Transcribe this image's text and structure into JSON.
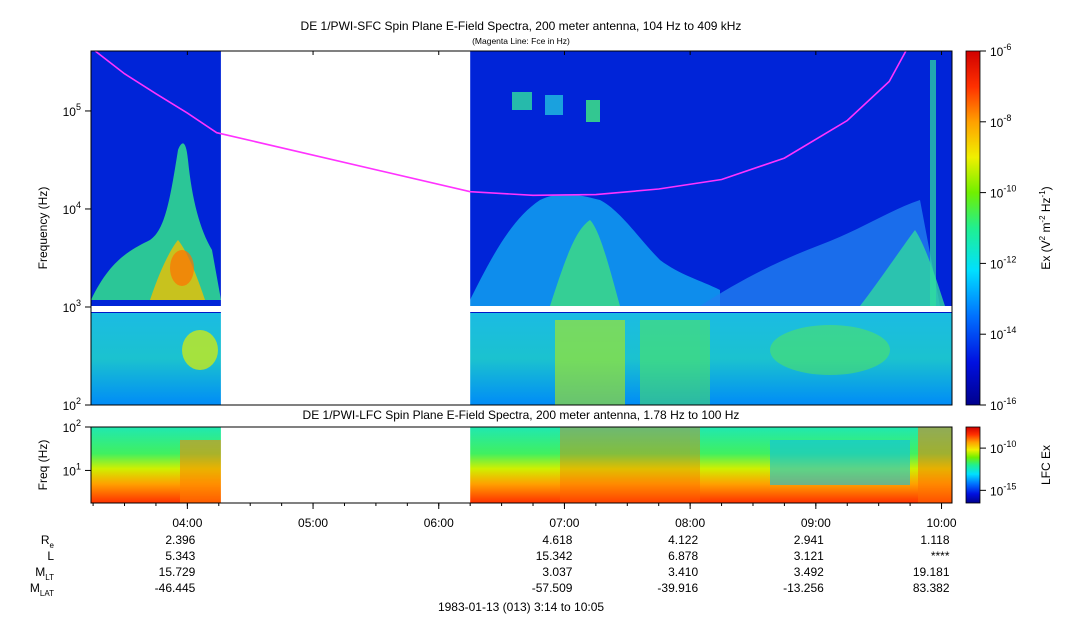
{
  "top_title": "DE 1/PWI-SFC  Spin Plane E-Field Spectra, 200 meter antenna, 104 Hz to 409 kHz",
  "top_subtitle": "(Magenta Line: Fce in Hz)",
  "bottom_title": "DE 1/PWI-LFC  Spin Plane E-Field Spectra, 200 meter antenna, 1.78 Hz to 100 Hz",
  "footer": "1983-01-13 (013) 3:14 to 10:05",
  "colors": {
    "fce_line": "#ff33ff",
    "background_fill": "#0019c8",
    "data_gap": "#ffffff"
  },
  "chart_data": [
    {
      "type": "heatmap",
      "name": "SFC",
      "title": "DE 1/PWI-SFC  Spin Plane E-Field Spectra, 200 meter antenna, 104 Hz to 409 kHz",
      "subtitle": "(Magenta Line: Fce in Hz)",
      "ylabel": "Frequency (Hz)",
      "yscale": "log",
      "ylim": [
        100,
        409000
      ],
      "yticks": [
        {
          "value": 100,
          "base": "10",
          "exp": "2"
        },
        {
          "value": 1000,
          "base": "10",
          "exp": "3"
        },
        {
          "value": 10000,
          "base": "10",
          "exp": "4"
        },
        {
          "value": 100000,
          "base": "10",
          "exp": "5"
        }
      ],
      "colorbar_label": {
        "prefix": "Ex (V",
        "sup1": "2",
        "mid": " m",
        "sup2": "-2",
        "mid2": " Hz",
        "sup3": "-1",
        "suffix": ")"
      },
      "colorbar_scale": "log",
      "colorbar_ticks": [
        {
          "value": 1e-06,
          "base": "10",
          "exp": "-6"
        },
        {
          "value": 1e-08,
          "base": "10",
          "exp": "-8"
        },
        {
          "value": 1e-10,
          "base": "10",
          "exp": "-10"
        },
        {
          "value": 1e-12,
          "base": "10",
          "exp": "-12"
        },
        {
          "value": 1e-14,
          "base": "10",
          "exp": "-14"
        },
        {
          "value": 1e-16,
          "base": "10",
          "exp": "-16"
        }
      ],
      "data_gap_utc": [
        "04:16",
        "06:15"
      ],
      "fce_line": [
        {
          "t": "03:16",
          "f": 409000
        },
        {
          "t": "03:30",
          "f": 240000
        },
        {
          "t": "03:45",
          "f": 150000
        },
        {
          "t": "04:00",
          "f": 95000
        },
        {
          "t": "04:14",
          "f": 60000
        },
        {
          "t": "06:15",
          "f": 15000
        },
        {
          "t": "06:45",
          "f": 13800
        },
        {
          "t": "07:15",
          "f": 14000
        },
        {
          "t": "07:45",
          "f": 16000
        },
        {
          "t": "08:15",
          "f": 20000
        },
        {
          "t": "08:45",
          "f": 33000
        },
        {
          "t": "09:15",
          "f": 80000
        },
        {
          "t": "09:35",
          "f": 200000
        },
        {
          "t": "09:43",
          "f": 409000
        }
      ]
    },
    {
      "type": "heatmap",
      "name": "LFC",
      "title": "DE 1/PWI-LFC  Spin Plane E-Field Spectra, 200 meter antenna, 1.78 Hz to 100 Hz",
      "ylabel": "Freq (Hz)",
      "yscale": "log",
      "ylim": [
        1.78,
        100
      ],
      "yticks": [
        {
          "value": 10,
          "base": "10",
          "exp": "1"
        },
        {
          "value": 100,
          "base": "10",
          "exp": "2"
        }
      ],
      "colorbar_label": "LFC Ex",
      "colorbar_ticks": [
        {
          "value": 1e-10,
          "base": "10",
          "exp": "-10"
        },
        {
          "value": 1e-15,
          "base": "10",
          "exp": "-15"
        }
      ],
      "data_gap_utc": [
        "04:16",
        "06:15"
      ]
    }
  ],
  "time_axis": {
    "start": "03:14",
    "end": "10:05",
    "ticks": [
      "04:00",
      "05:00",
      "06:00",
      "07:00",
      "08:00",
      "09:00",
      "10:00"
    ]
  },
  "ephemeris": {
    "row_labels": [
      {
        "main": "R",
        "sub": "e"
      },
      {
        "main": "L",
        "sub": ""
      },
      {
        "main": "M",
        "sub": "LT"
      },
      {
        "main": "M",
        "sub": "LAT"
      }
    ],
    "columns": [
      {
        "time": "04:00",
        "values": [
          "2.396",
          "5.343",
          "15.729",
          "-46.445"
        ]
      },
      {
        "time": "07:00",
        "values": [
          "4.618",
          "15.342",
          "3.037",
          "-57.509"
        ]
      },
      {
        "time": "08:00",
        "values": [
          "4.122",
          "6.878",
          "3.410",
          "-39.916"
        ]
      },
      {
        "time": "09:00",
        "values": [
          "2.941",
          "3.121",
          "3.492",
          "-13.256"
        ]
      },
      {
        "time": "10:00",
        "values": [
          "1.118",
          "****",
          "19.181",
          "83.382"
        ]
      }
    ]
  }
}
